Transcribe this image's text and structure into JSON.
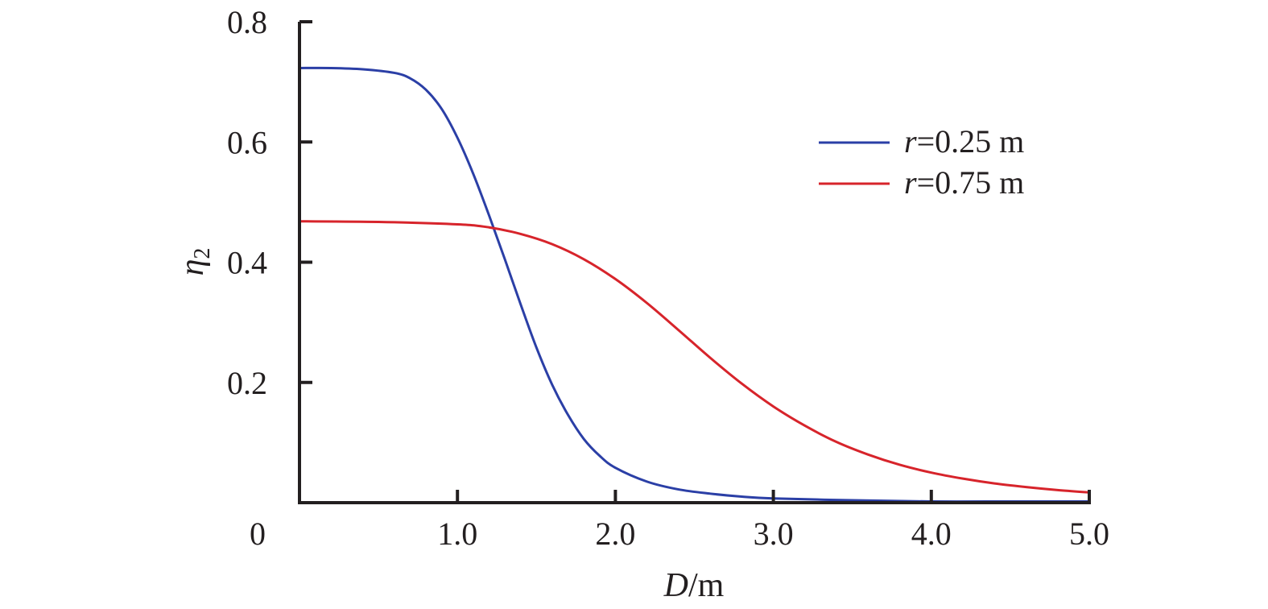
{
  "chart_data": {
    "type": "line",
    "xlabel": {
      "italic": "D",
      "rest": "/m"
    },
    "ylabel": {
      "italic": "η",
      "sub": "2"
    },
    "xlim": [
      0,
      5.0
    ],
    "ylim": [
      0,
      0.8
    ],
    "origin_label": "0",
    "x_ticks": [
      {
        "value": 1.0,
        "label": "1.0"
      },
      {
        "value": 2.0,
        "label": "2.0"
      },
      {
        "value": 3.0,
        "label": "3.0"
      },
      {
        "value": 4.0,
        "label": "4.0"
      },
      {
        "value": 5.0,
        "label": "5.0"
      }
    ],
    "y_ticks": [
      {
        "value": 0.2,
        "label": "0.2"
      },
      {
        "value": 0.4,
        "label": "0.4"
      },
      {
        "value": 0.6,
        "label": "0.6"
      },
      {
        "value": 0.8,
        "label": "0.8"
      }
    ],
    "grid": false,
    "legend_position": "top-right",
    "series": [
      {
        "name": "r=0.25 m",
        "legend_italic": "r",
        "legend_rest": "=0.25 m",
        "color": "#2b3fa6",
        "x": [
          0,
          0.2,
          0.4,
          0.6,
          0.7,
          0.8,
          0.9,
          1.0,
          1.1,
          1.2,
          1.3,
          1.4,
          1.5,
          1.6,
          1.7,
          1.8,
          1.9,
          2.0,
          2.2,
          2.4,
          2.6,
          2.8,
          3.0,
          3.5,
          4.0,
          4.5,
          5.0
        ],
        "y": [
          0.723,
          0.723,
          0.721,
          0.715,
          0.706,
          0.687,
          0.655,
          0.607,
          0.547,
          0.478,
          0.405,
          0.33,
          0.258,
          0.196,
          0.146,
          0.106,
          0.078,
          0.058,
          0.035,
          0.022,
          0.015,
          0.01,
          0.007,
          0.004,
          0.002,
          0.002,
          0.002
        ]
      },
      {
        "name": "r=0.75 m",
        "legend_italic": "r",
        "legend_rest": "=0.75 m",
        "color": "#d7242b",
        "x": [
          0,
          0.5,
          1.0,
          1.2,
          1.4,
          1.6,
          1.8,
          2.0,
          2.2,
          2.4,
          2.6,
          2.8,
          3.0,
          3.2,
          3.4,
          3.6,
          3.8,
          4.0,
          4.2,
          4.4,
          4.6,
          4.8,
          5.0
        ],
        "y": [
          0.468,
          0.467,
          0.463,
          0.458,
          0.447,
          0.43,
          0.405,
          0.372,
          0.332,
          0.287,
          0.241,
          0.198,
          0.16,
          0.128,
          0.101,
          0.08,
          0.063,
          0.05,
          0.04,
          0.032,
          0.026,
          0.021,
          0.017
        ]
      }
    ]
  }
}
